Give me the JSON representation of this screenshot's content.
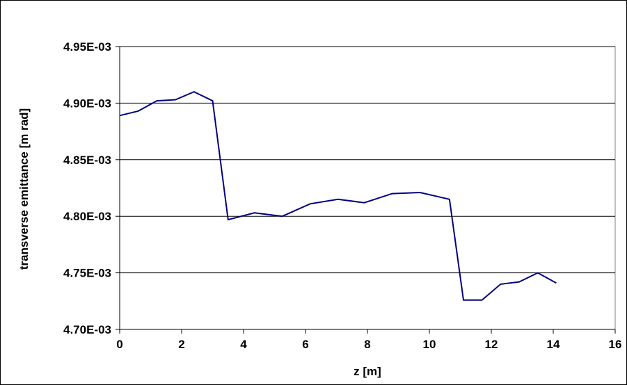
{
  "chart_data": {
    "type": "line",
    "title": "",
    "xlabel": "z [m]",
    "ylabel": "transverse emittance [m rad]",
    "xlim": [
      0,
      16
    ],
    "ylim": [
      0.0047,
      0.00495
    ],
    "x_ticks": [
      0,
      2,
      4,
      6,
      8,
      10,
      12,
      14,
      16
    ],
    "x_tick_labels": [
      "0",
      "2",
      "4",
      "6",
      "8",
      "10",
      "12",
      "14",
      "16"
    ],
    "y_ticks": [
      0.0047,
      0.00475,
      0.0048,
      0.00485,
      0.0049,
      0.00495
    ],
    "y_tick_labels": [
      "4.70E-03",
      "4.75E-03",
      "4.80E-03",
      "4.85E-03",
      "4.90E-03",
      "4.95E-03"
    ],
    "grid": "horizontal major gridlines",
    "legend": "none",
    "series": [
      {
        "color": "#000080",
        "x": [
          0,
          0.6,
          1.2,
          1.8,
          2.4,
          3.0,
          3.5,
          4.35,
          5.25,
          6.15,
          7.05,
          7.9,
          8.8,
          9.7,
          10.65,
          11.1,
          11.7,
          12.3,
          12.9,
          13.5,
          14.1
        ],
        "y": [
          0.004889,
          0.004893,
          0.004902,
          0.004903,
          0.00491,
          0.004902,
          0.004797,
          0.004803,
          0.0048,
          0.004811,
          0.004815,
          0.004812,
          0.00482,
          0.004821,
          0.004815,
          0.004726,
          0.004726,
          0.00474,
          0.004742,
          0.00475,
          0.004741
        ]
      }
    ]
  }
}
